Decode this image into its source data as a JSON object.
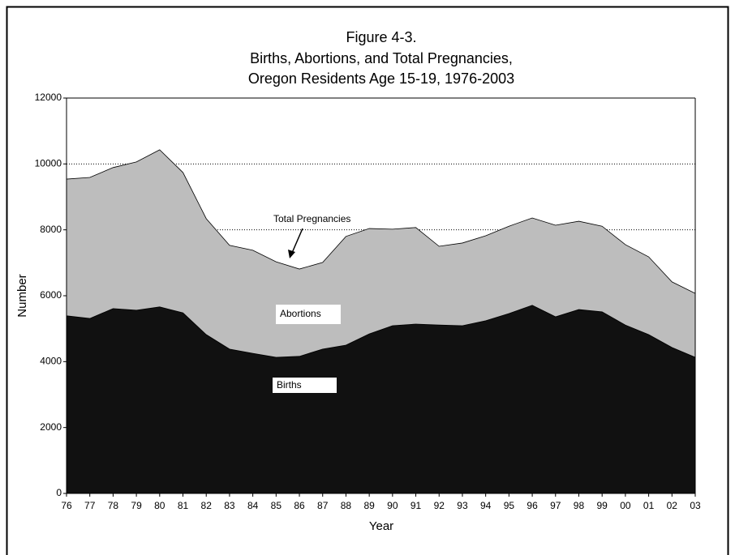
{
  "chart_data": {
    "type": "stacked_area",
    "title": [
      "Figure 4-3.",
      "Births, Abortions, and Total Pregnancies,",
      "Oregon Residents Age 15-19, 1976-2003"
    ],
    "x_label": "Year",
    "y_label": "Number",
    "annotation": "Total Pregnancies",
    "categories": [
      "76",
      "77",
      "78",
      "79",
      "80",
      "81",
      "82",
      "83",
      "84",
      "85",
      "86",
      "87",
      "88",
      "89",
      "90",
      "91",
      "92",
      "93",
      "94",
      "95",
      "96",
      "97",
      "98",
      "99",
      "00",
      "01",
      "02",
      "03"
    ],
    "series": [
      {
        "name": "Births",
        "color": "#111111",
        "values": [
          5390,
          5310,
          5610,
          5560,
          5660,
          5480,
          4820,
          4380,
          4250,
          4130,
          4160,
          4380,
          4500,
          4840,
          5090,
          5140,
          5110,
          5090,
          5240,
          5460,
          5710,
          5360,
          5580,
          5510,
          5110,
          4820,
          4430,
          4130
        ]
      },
      {
        "name": "Abortions",
        "color": "#bdbdbd",
        "values": [
          4150,
          4280,
          4280,
          4500,
          4770,
          4260,
          3520,
          3150,
          3130,
          2900,
          2650,
          2630,
          3300,
          3200,
          2930,
          2930,
          2390,
          2510,
          2580,
          2650,
          2650,
          2780,
          2680,
          2600,
          2440,
          2360,
          1990,
          1940
        ]
      }
    ],
    "ylim": [
      0,
      12000
    ],
    "yticks": [
      0,
      2000,
      4000,
      6000,
      8000,
      10000,
      12000
    ],
    "grid": true
  }
}
